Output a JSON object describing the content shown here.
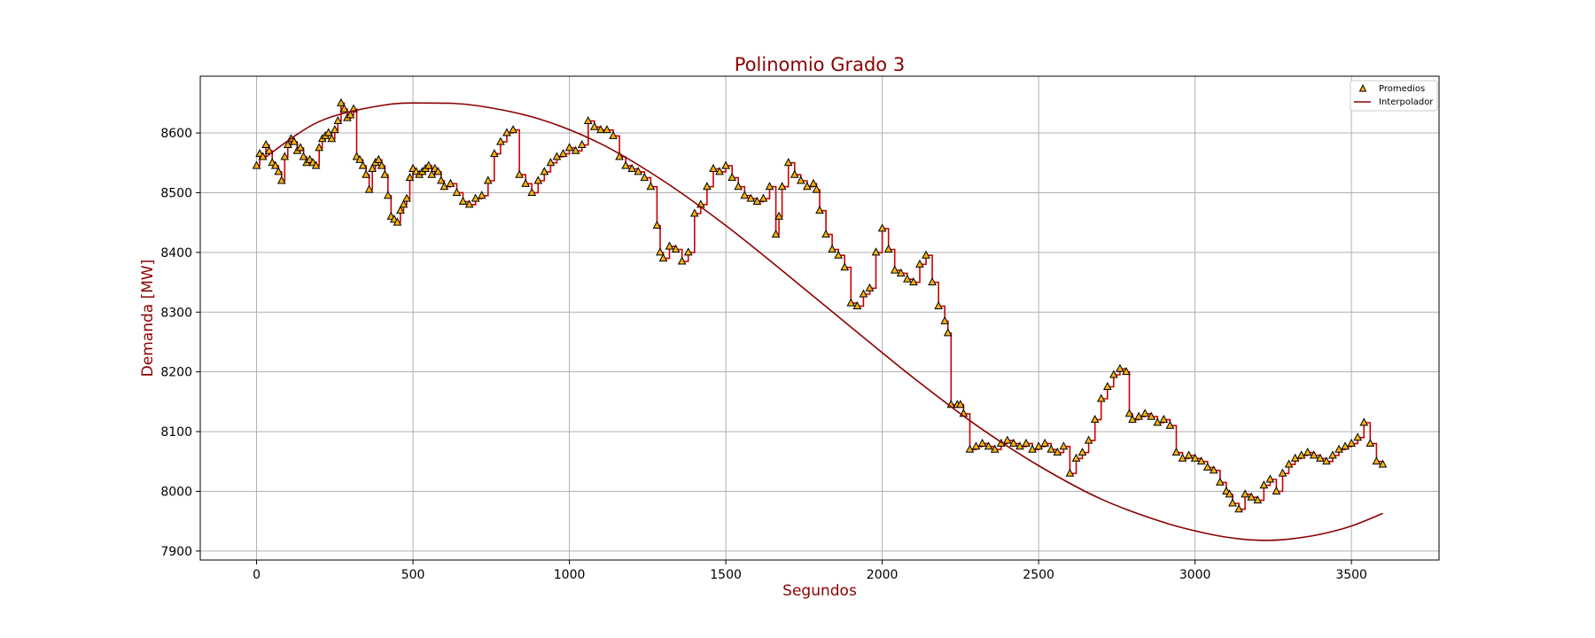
{
  "chart_data": {
    "type": "line",
    "title": "Polinomio Grado 3",
    "xlabel": "Segundos",
    "ylabel": "Demanda [MW]",
    "xlim": [
      -180,
      3780
    ],
    "ylim": [
      7885,
      8695
    ],
    "xticks": [
      0,
      500,
      1000,
      1500,
      2000,
      2500,
      3000,
      3500
    ],
    "yticks": [
      7900,
      8000,
      8100,
      8200,
      8300,
      8400,
      8500,
      8600
    ],
    "grid": true,
    "legend_position": "top-right",
    "colors": {
      "text": "#8b0000",
      "line": "#8b0000",
      "marker_fill": "#f5b30f",
      "marker_edge": "#000000",
      "step_line": "#cc0000",
      "grid": "#b0b0b0"
    },
    "series": [
      {
        "name": "Promedios",
        "kind": "scatter",
        "marker": "triangle",
        "x": [
          0,
          10,
          20,
          30,
          40,
          50,
          60,
          70,
          80,
          90,
          100,
          110,
          120,
          130,
          140,
          150,
          160,
          170,
          180,
          190,
          200,
          210,
          220,
          230,
          240,
          250,
          260,
          270,
          280,
          290,
          300,
          310,
          320,
          330,
          340,
          350,
          360,
          370,
          380,
          390,
          400,
          410,
          420,
          430,
          440,
          450,
          460,
          470,
          480,
          490,
          500,
          510,
          520,
          530,
          540,
          550,
          560,
          570,
          580,
          590,
          600,
          620,
          640,
          660,
          680,
          700,
          720,
          740,
          760,
          780,
          800,
          820,
          840,
          860,
          880,
          900,
          920,
          940,
          960,
          980,
          1000,
          1020,
          1040,
          1060,
          1080,
          1100,
          1120,
          1140,
          1160,
          1180,
          1200,
          1220,
          1240,
          1260,
          1280,
          1290,
          1300,
          1320,
          1340,
          1360,
          1380,
          1400,
          1420,
          1440,
          1460,
          1480,
          1500,
          1520,
          1540,
          1560,
          1580,
          1600,
          1620,
          1640,
          1660,
          1670,
          1680,
          1700,
          1720,
          1740,
          1760,
          1780,
          1790,
          1800,
          1820,
          1840,
          1860,
          1880,
          1900,
          1920,
          1940,
          1960,
          1980,
          2000,
          2020,
          2040,
          2060,
          2080,
          2100,
          2120,
          2140,
          2160,
          2180,
          2200,
          2210,
          2220,
          2240,
          2250,
          2260,
          2280,
          2300,
          2320,
          2340,
          2360,
          2380,
          2400,
          2420,
          2440,
          2460,
          2480,
          2500,
          2520,
          2540,
          2560,
          2580,
          2600,
          2620,
          2640,
          2660,
          2680,
          2700,
          2720,
          2740,
          2760,
          2780,
          2790,
          2800,
          2820,
          2840,
          2860,
          2880,
          2900,
          2920,
          2940,
          2960,
          2980,
          3000,
          3020,
          3040,
          3060,
          3080,
          3100,
          3110,
          3120,
          3140,
          3160,
          3180,
          3200,
          3220,
          3240,
          3260,
          3280,
          3300,
          3320,
          3340,
          3360,
          3380,
          3400,
          3420,
          3440,
          3460,
          3480,
          3500,
          3520,
          3540,
          3560,
          3580,
          3600
        ],
        "y": [
          8545,
          8565,
          8560,
          8580,
          8570,
          8550,
          8545,
          8535,
          8520,
          8560,
          8580,
          8590,
          8585,
          8570,
          8575,
          8560,
          8550,
          8555,
          8550,
          8545,
          8575,
          8590,
          8595,
          8600,
          8590,
          8605,
          8620,
          8650,
          8640,
          8625,
          8630,
          8640,
          8560,
          8555,
          8545,
          8530,
          8505,
          8540,
          8550,
          8555,
          8545,
          8530,
          8495,
          8460,
          8455,
          8450,
          8470,
          8480,
          8490,
          8525,
          8540,
          8535,
          8530,
          8535,
          8540,
          8545,
          8530,
          8540,
          8535,
          8520,
          8510,
          8515,
          8500,
          8485,
          8480,
          8490,
          8495,
          8520,
          8565,
          8585,
          8600,
          8605,
          8530,
          8515,
          8500,
          8520,
          8535,
          8550,
          8560,
          8565,
          8575,
          8570,
          8580,
          8620,
          8610,
          8605,
          8605,
          8595,
          8560,
          8545,
          8540,
          8535,
          8525,
          8510,
          8445,
          8400,
          8390,
          8410,
          8405,
          8385,
          8400,
          8465,
          8480,
          8510,
          8540,
          8535,
          8545,
          8525,
          8510,
          8495,
          8490,
          8485,
          8490,
          8510,
          8430,
          8460,
          8510,
          8550,
          8530,
          8520,
          8510,
          8515,
          8505,
          8470,
          8430,
          8405,
          8395,
          8375,
          8315,
          8310,
          8330,
          8340,
          8400,
          8440,
          8405,
          8370,
          8365,
          8355,
          8350,
          8380,
          8395,
          8350,
          8310,
          8285,
          8265,
          8145,
          8145,
          8145,
          8130,
          8070,
          8075,
          8080,
          8075,
          8070,
          8080,
          8085,
          8080,
          8075,
          8080,
          8070,
          8075,
          8080,
          8070,
          8065,
          8075,
          8030,
          8055,
          8065,
          8085,
          8120,
          8155,
          8175,
          8195,
          8205,
          8200,
          8130,
          8120,
          8125,
          8130,
          8125,
          8115,
          8120,
          8110,
          8065,
          8055,
          8060,
          8055,
          8050,
          8040,
          8035,
          8015,
          8000,
          7995,
          7980,
          7970,
          7995,
          7990,
          7985,
          8010,
          8020,
          8000,
          8030,
          8045,
          8055,
          8060,
          8065,
          8060,
          8055,
          8050,
          8060,
          8070,
          8075,
          8080,
          8090,
          8115,
          8080,
          8050,
          8045
        ]
      },
      {
        "name": "Interpolador",
        "kind": "line",
        "x": [
          30,
          200,
          400,
          550,
          700,
          900,
          1100,
          1300,
          1500,
          1700,
          1900,
          2100,
          2300,
          2500,
          2700,
          2900,
          3050,
          3150,
          3230,
          3300,
          3400,
          3500,
          3600
        ],
        "y": [
          8560,
          8619,
          8646,
          8650,
          8646,
          8624,
          8582,
          8520,
          8445,
          8361,
          8275,
          8190,
          8111,
          8043,
          7987,
          7948,
          7928,
          7920,
          7918,
          7920,
          7928,
          7942,
          7963
        ]
      }
    ]
  }
}
